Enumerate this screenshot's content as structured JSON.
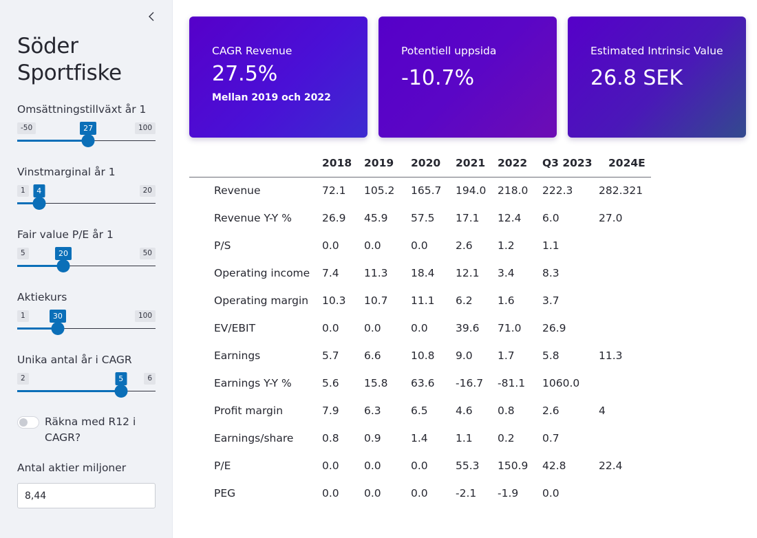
{
  "sidebar": {
    "title": "Söder Sportfiske",
    "collapse_icon": "chevron-left-icon",
    "sliders": [
      {
        "label": "Omsättningstillväxt år 1",
        "min": "-50",
        "max": "100",
        "value": "27",
        "min_num": -50,
        "max_num": 100,
        "value_num": 27
      },
      {
        "label": "Vinstmarginal år 1",
        "min": "1",
        "max": "20",
        "value": "4",
        "min_num": 1,
        "max_num": 20,
        "value_num": 4
      },
      {
        "label": "Fair value P/E år 1",
        "min": "5",
        "max": "50",
        "value": "20",
        "min_num": 5,
        "max_num": 50,
        "value_num": 20
      },
      {
        "label": "Aktiekurs",
        "min": "1",
        "max": "100",
        "value": "30",
        "min_num": 1,
        "max_num": 100,
        "value_num": 30
      },
      {
        "label": "Unika antal år i CAGR",
        "min": "2",
        "max": "6",
        "value": "5",
        "min_num": 2,
        "max_num": 6,
        "value_num": 5
      }
    ],
    "toggle": {
      "label": "Räkna med R12 i CAGR?",
      "on": false
    },
    "shares_input": {
      "label": "Antal aktier miljoner",
      "value": "8,44"
    }
  },
  "metrics": [
    {
      "title": "CAGR Revenue",
      "value": "27.5%",
      "sub": "Mellan 2019 och 2022"
    },
    {
      "title": "Potentiell uppsida",
      "value": "-10.7%"
    },
    {
      "title": "Estimated Intrinsic Value",
      "value": "26.8 SEK"
    }
  ],
  "colors": {
    "accent": "#0b6fb8",
    "card_purple": "#5600c9"
  },
  "table": {
    "headers": [
      "",
      "2018",
      "2019",
      "2020",
      "2021",
      "2022",
      "Q3 2023",
      "2024E"
    ],
    "rows": [
      [
        "Revenue",
        "72.1",
        "105.2",
        "165.7",
        "194.0",
        "218.0",
        "222.3",
        "282.321"
      ],
      [
        "Revenue Y-Y %",
        "26.9",
        "45.9",
        "57.5",
        "17.1",
        "12.4",
        "6.0",
        "27.0"
      ],
      [
        "P/S",
        "0.0",
        "0.0",
        "0.0",
        "2.6",
        "1.2",
        "1.1",
        ""
      ],
      [
        "Operating income",
        "7.4",
        "11.3",
        "18.4",
        "12.1",
        "3.4",
        "8.3",
        ""
      ],
      [
        "Operating margin",
        "10.3",
        "10.7",
        "11.1",
        "6.2",
        "1.6",
        "3.7",
        ""
      ],
      [
        "EV/EBIT",
        "0.0",
        "0.0",
        "0.0",
        "39.6",
        "71.0",
        "26.9",
        ""
      ],
      [
        "Earnings",
        "5.7",
        "6.6",
        "10.8",
        "9.0",
        "1.7",
        "5.8",
        "11.3"
      ],
      [
        "Earnings Y-Y %",
        "5.6",
        "15.8",
        "63.6",
        "-16.7",
        "-81.1",
        "1060.0",
        ""
      ],
      [
        "Profit margin",
        "7.9",
        "6.3",
        "6.5",
        "4.6",
        "0.8",
        "2.6",
        "4"
      ],
      [
        "Earnings/share",
        "0.8",
        "0.9",
        "1.4",
        "1.1",
        "0.2",
        "0.7",
        ""
      ],
      [
        "P/E",
        "0.0",
        "0.0",
        "0.0",
        "55.3",
        "150.9",
        "42.8",
        "22.4"
      ],
      [
        "PEG",
        "0.0",
        "0.0",
        "0.0",
        "-2.1",
        "-1.9",
        "0.0",
        ""
      ]
    ]
  }
}
